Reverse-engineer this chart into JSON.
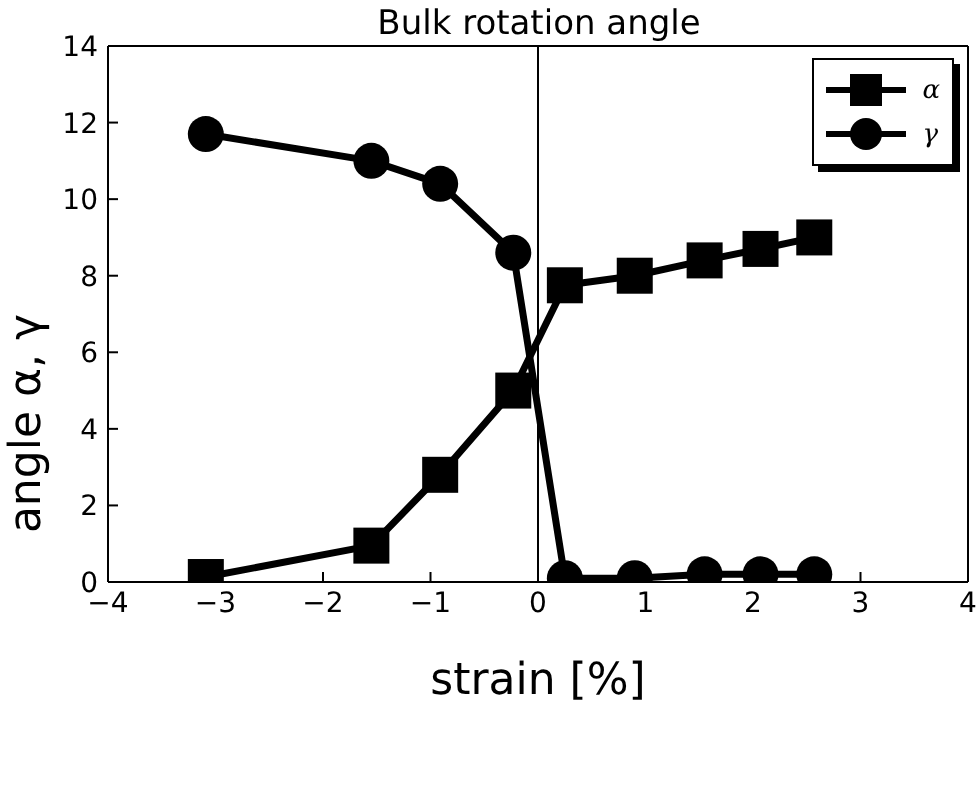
{
  "chart_data": {
    "type": "line",
    "title": "Bulk rotation angle",
    "xlabel": "strain [%]",
    "ylabel": "angle α, γ",
    "xlim": [
      -4,
      4
    ],
    "xticks": [
      -4,
      -3,
      -2,
      -1,
      0,
      1,
      2,
      3,
      4
    ],
    "ylim": [
      0,
      14
    ],
    "yticks": [
      0,
      2,
      4,
      6,
      8,
      10,
      12,
      14
    ],
    "grid": false,
    "legend": "top right",
    "line_style": "solid",
    "ref_lines": [
      {
        "axis": "x",
        "value": 0,
        "color": "#000000"
      }
    ],
    "series": [
      {
        "name": "α",
        "color": "#000000",
        "marker": "square",
        "x": [
          -3.09,
          -1.55,
          -0.91,
          -0.23,
          0.25,
          0.9,
          1.55,
          2.07,
          2.57
        ],
        "values": [
          0.13,
          0.95,
          2.8,
          5.0,
          7.75,
          8.0,
          8.4,
          8.7,
          9.0
        ]
      },
      {
        "name": "γ",
        "color": "#000000",
        "marker": "circle",
        "x": [
          -3.09,
          -1.55,
          -0.91,
          -0.23,
          0.25,
          0.9,
          1.55,
          2.07,
          2.57
        ],
        "values": [
          11.7,
          11.0,
          10.4,
          8.6,
          0.1,
          0.1,
          0.2,
          0.2,
          0.2
        ]
      }
    ]
  }
}
